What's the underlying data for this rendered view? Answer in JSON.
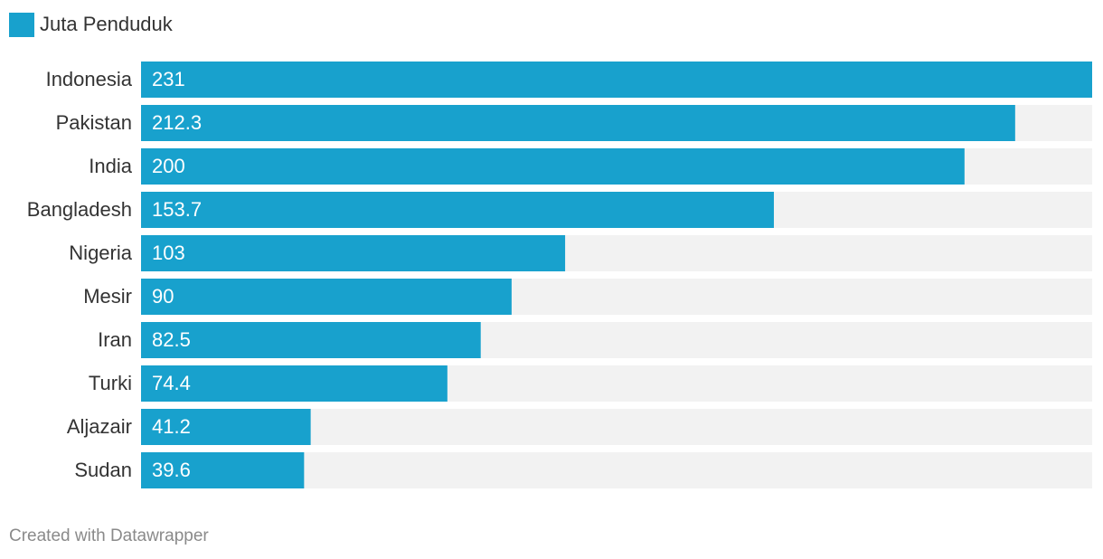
{
  "chart_data": {
    "type": "bar",
    "orientation": "horizontal",
    "categories": [
      "Indonesia",
      "Pakistan",
      "India",
      "Bangladesh",
      "Nigeria",
      "Mesir",
      "Iran",
      "Turki",
      "Aljazair",
      "Sudan"
    ],
    "series": [
      {
        "name": "Juta Penduduk",
        "color": "#18a1cd",
        "values": [
          231,
          212.3,
          200,
          153.7,
          103,
          90,
          82.5,
          74.4,
          41.2,
          39.6
        ]
      }
    ],
    "background_bar_color": "#f2f2f2",
    "legend": "top-left",
    "credit": "Created with Datawrapper"
  }
}
